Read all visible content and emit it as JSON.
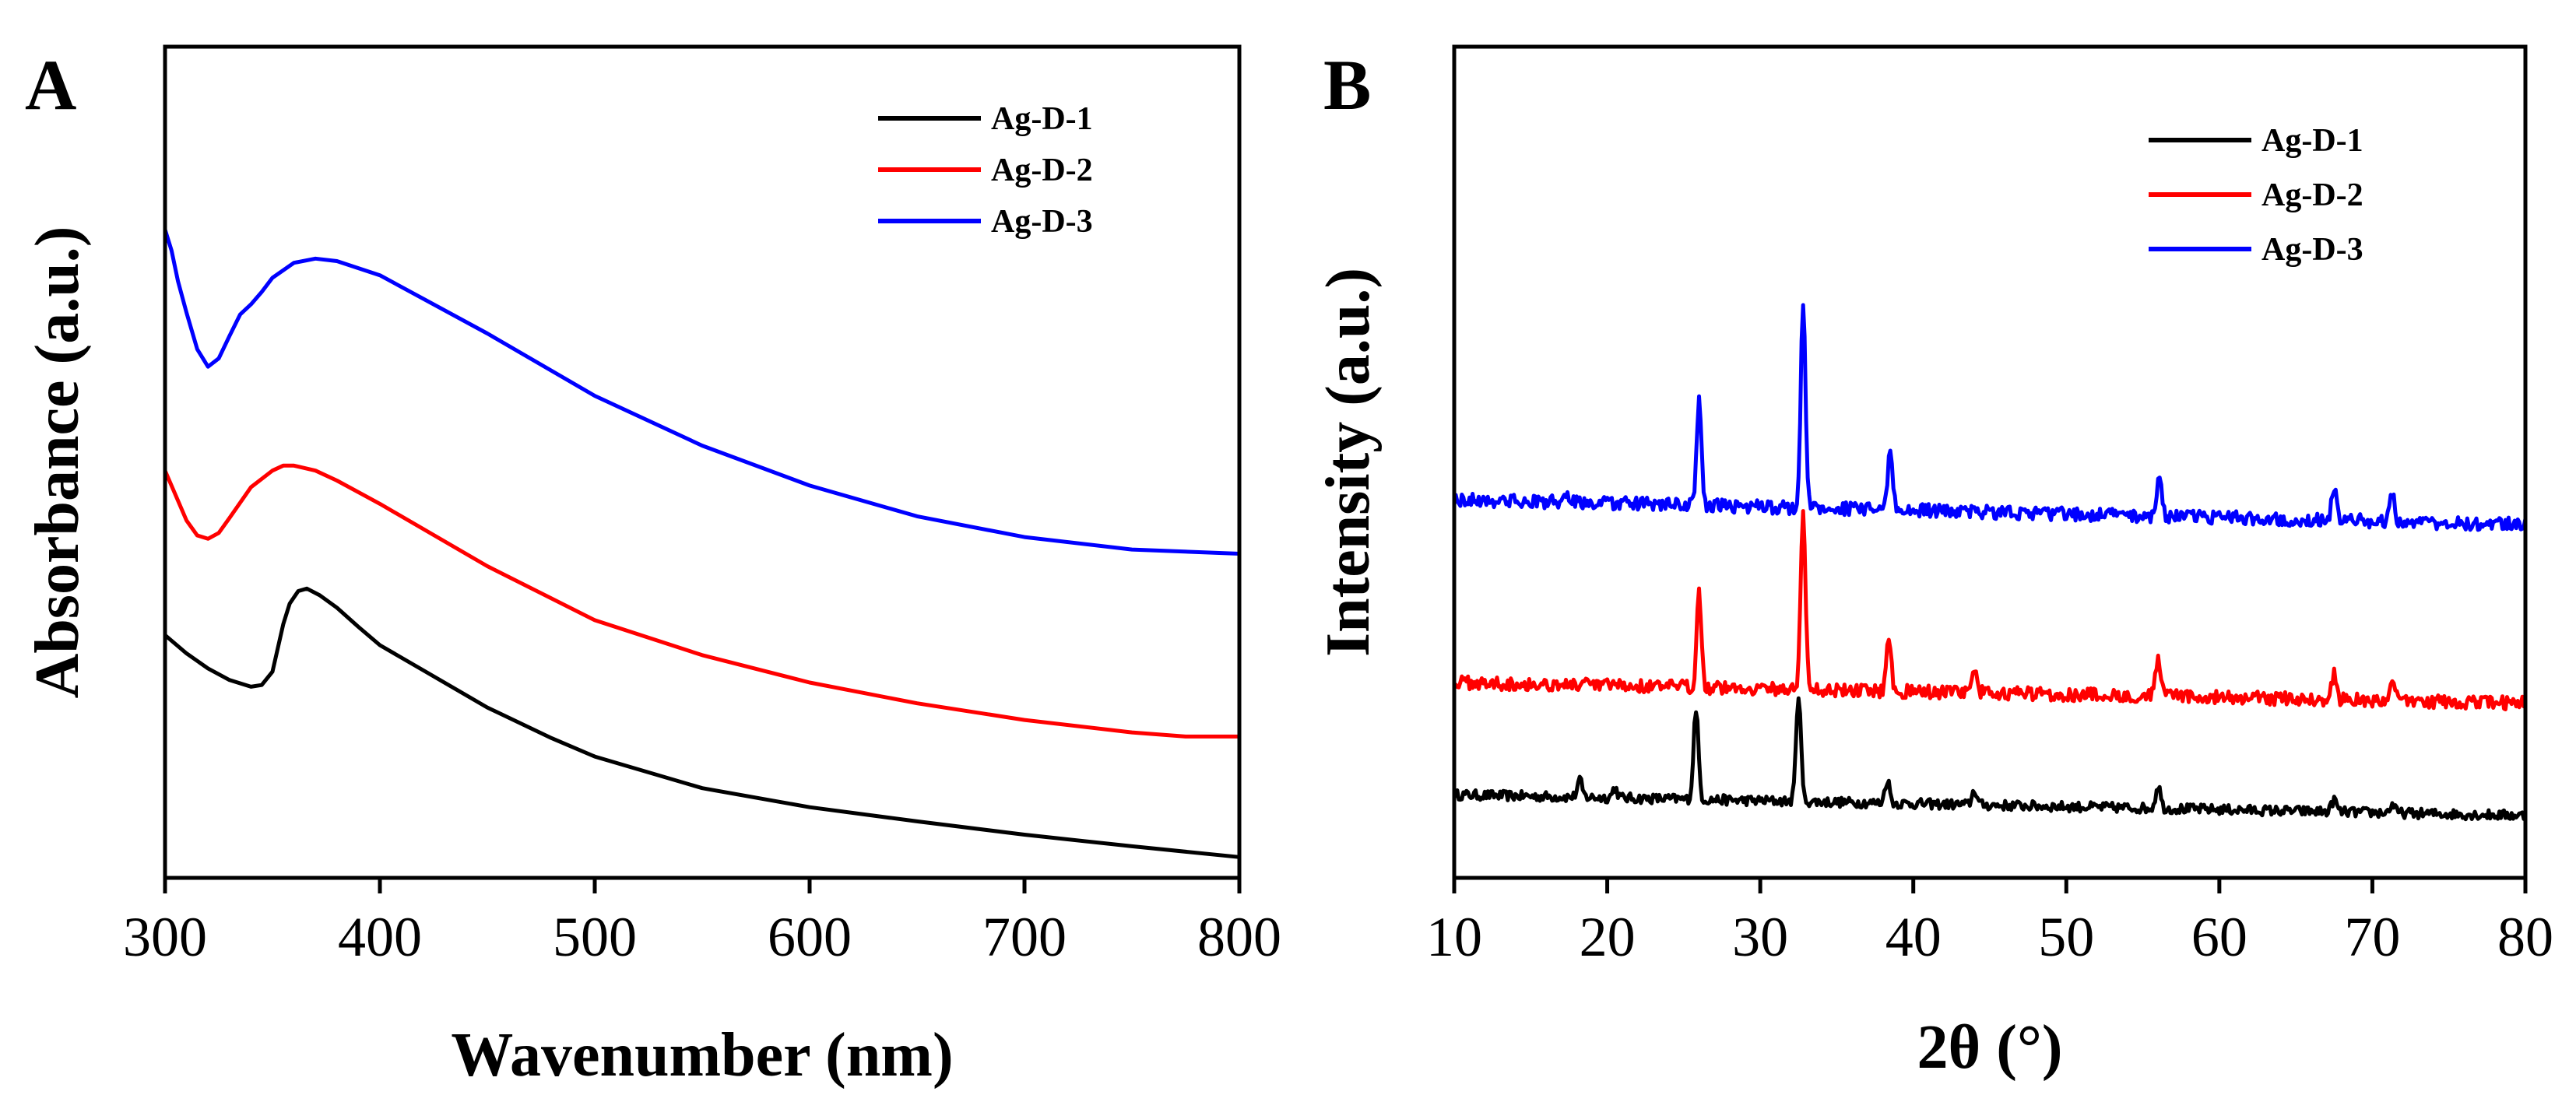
{
  "chart_data": [
    {
      "panel": "A",
      "type": "line",
      "xlabel": "Wavenumber (nm)",
      "ylabel": "Absorbance (a.u.)",
      "xlim": [
        300,
        800
      ],
      "ylim": [
        0,
        1
      ],
      "y_ticks_shown": false,
      "x_ticks": [
        "300",
        "400",
        "500",
        "600",
        "700",
        "800"
      ],
      "legend_position": "top-right",
      "series": [
        {
          "name": "Ag-D-1",
          "color": "#000000",
          "x": [
            300,
            310,
            320,
            330,
            340,
            345,
            350,
            355,
            358,
            362,
            366,
            372,
            380,
            390,
            400,
            420,
            450,
            480,
            500,
            550,
            600,
            650,
            700,
            750,
            800
          ],
          "y": [
            0.292,
            0.27,
            0.252,
            0.238,
            0.23,
            0.232,
            0.248,
            0.305,
            0.33,
            0.345,
            0.348,
            0.34,
            0.325,
            0.302,
            0.28,
            0.25,
            0.205,
            0.168,
            0.146,
            0.108,
            0.085,
            0.068,
            0.052,
            0.038,
            0.025
          ]
        },
        {
          "name": "Ag-D-2",
          "color": "#ff0000",
          "x": [
            300,
            305,
            310,
            315,
            320,
            325,
            330,
            340,
            350,
            355,
            360,
            370,
            380,
            400,
            450,
            500,
            550,
            600,
            650,
            700,
            750,
            775,
            800
          ],
          "y": [
            0.49,
            0.46,
            0.43,
            0.412,
            0.408,
            0.415,
            0.433,
            0.47,
            0.49,
            0.496,
            0.496,
            0.49,
            0.478,
            0.45,
            0.375,
            0.31,
            0.268,
            0.235,
            0.21,
            0.19,
            0.175,
            0.17,
            0.17
          ]
        },
        {
          "name": "Ag-D-3",
          "color": "#0000ff",
          "x": [
            300,
            303,
            306,
            310,
            315,
            320,
            325,
            330,
            335,
            340,
            345,
            350,
            360,
            370,
            380,
            400,
            450,
            500,
            550,
            600,
            650,
            700,
            750,
            800
          ],
          "y": [
            0.78,
            0.755,
            0.718,
            0.68,
            0.636,
            0.615,
            0.625,
            0.652,
            0.678,
            0.69,
            0.705,
            0.722,
            0.74,
            0.745,
            0.742,
            0.725,
            0.655,
            0.58,
            0.52,
            0.472,
            0.435,
            0.41,
            0.395,
            0.39
          ]
        }
      ]
    },
    {
      "panel": "B",
      "type": "line",
      "xlabel": "2θ (°)",
      "ylabel": "Intensity (a.u.)",
      "xlim": [
        10,
        80
      ],
      "ylim": [
        0,
        1
      ],
      "y_ticks_shown": false,
      "x_ticks": [
        "10",
        "20",
        "30",
        "40",
        "50",
        "60",
        "70",
        "80"
      ],
      "legend_position": "top-right",
      "series": [
        {
          "name": "Ag-D-1",
          "color": "#000000",
          "baseline": [
            0.1,
            0.075
          ],
          "noise": 0.006,
          "peaks": [
            [
              18.2,
              0.02
            ],
            [
              20.5,
              0.012
            ],
            [
              25.8,
              0.11
            ],
            [
              32.5,
              0.13
            ],
            [
              38.3,
              0.028
            ],
            [
              44.0,
              0.018
            ],
            [
              56.0,
              0.028
            ],
            [
              67.5,
              0.015
            ],
            [
              71.3,
              0.01
            ]
          ]
        },
        {
          "name": "Ag-D-2",
          "color": "#ff0000",
          "baseline": [
            0.235,
            0.21
          ],
          "noise": 0.008,
          "peaks": [
            [
              26.0,
              0.115
            ],
            [
              32.8,
              0.215
            ],
            [
              38.4,
              0.065
            ],
            [
              44.0,
              0.025
            ],
            [
              56.0,
              0.05
            ],
            [
              67.5,
              0.03
            ],
            [
              71.3,
              0.025
            ]
          ]
        },
        {
          "name": "Ag-D-3",
          "color": "#0000ff",
          "baseline": [
            0.455,
            0.425
          ],
          "noise": 0.008,
          "peaks": [
            [
              17.5,
              0.008
            ],
            [
              26.0,
              0.125
            ],
            [
              32.8,
              0.245
            ],
            [
              38.5,
              0.075
            ],
            [
              56.1,
              0.05
            ],
            [
              67.5,
              0.04
            ],
            [
              71.3,
              0.035
            ]
          ]
        }
      ]
    }
  ]
}
